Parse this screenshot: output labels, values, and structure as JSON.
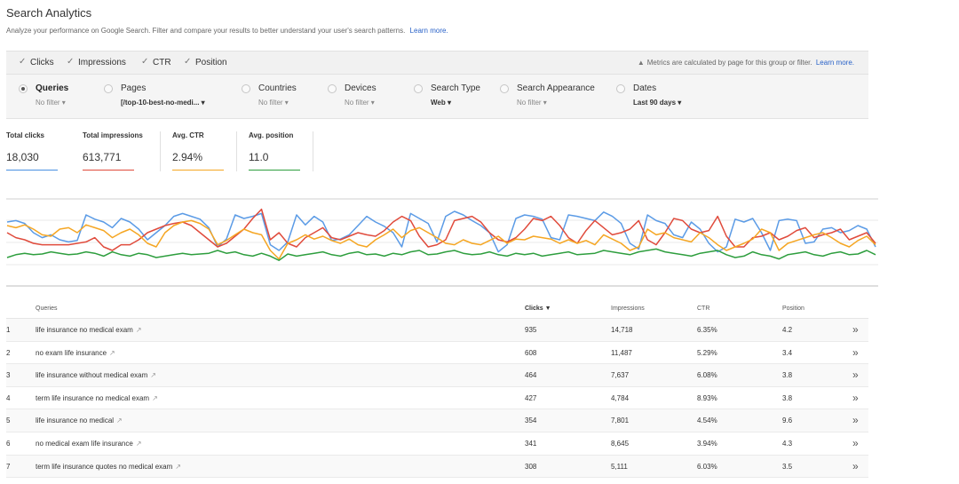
{
  "header": {
    "title": "Search Analytics",
    "subtitle": "Analyze your performance on Google Search. Filter and compare your results to better understand your user's search patterns.",
    "learn_more": "Learn more."
  },
  "metrics": {
    "clicks": "Clicks",
    "impressions": "Impressions",
    "ctr": "CTR",
    "position": "Position",
    "note": "Metrics are calculated by page for this group or filter.",
    "note_link": "Learn more."
  },
  "filters": [
    {
      "label": "Queries",
      "sub": "No filter",
      "selected": true
    },
    {
      "label": "Pages",
      "sub": "[/top-10-best-no-medi...",
      "selected": false
    },
    {
      "label": "Countries",
      "sub": "No filter",
      "selected": false
    },
    {
      "label": "Devices",
      "sub": "No filter",
      "selected": false
    },
    {
      "label": "Search Type",
      "sub": "Web",
      "selected": false
    },
    {
      "label": "Search Appearance",
      "sub": "No filter",
      "selected": false
    },
    {
      "label": "Dates",
      "sub": "Last 90 days",
      "selected": false
    }
  ],
  "totals": [
    {
      "label": "Total clicks",
      "value": "18,030",
      "color": "#4a90e2"
    },
    {
      "label": "Total impressions",
      "value": "613,771",
      "color": "#e04b3c"
    },
    {
      "label": "Avg. CTR",
      "value": "2.94%",
      "color": "#f5a623"
    },
    {
      "label": "Avg. position",
      "value": "11.0",
      "color": "#2e9e3e"
    }
  ],
  "chart_data": {
    "type": "line",
    "title": "",
    "series": [
      {
        "color": "#5b9be6",
        "values": [
          70,
          72,
          68,
          55,
          48,
          52,
          45,
          42,
          44,
          80,
          74,
          70,
          62,
          75,
          70,
          60,
          45,
          55,
          65,
          78,
          82,
          78,
          74,
          62,
          35,
          46,
          80,
          75,
          78,
          82,
          38,
          30,
          42,
          80,
          66,
          78,
          70,
          44,
          46,
          52,
          65,
          78,
          70,
          64,
          55,
          35,
          82,
          75,
          68,
          42,
          78,
          85,
          80,
          72,
          65,
          55,
          28,
          38,
          75,
          80,
          78,
          74,
          48,
          45,
          80,
          78,
          75,
          72,
          84,
          78,
          68,
          40,
          32,
          80,
          72,
          68,
          52,
          48,
          70,
          60,
          40,
          28,
          35,
          74,
          70,
          75,
          55,
          30,
          72,
          74,
          72,
          40,
          42,
          60,
          62,
          55,
          58,
          65,
          60,
          35
        ]
      },
      {
        "color": "#e04b3c",
        "values": [
          55,
          48,
          45,
          40,
          38,
          38,
          38,
          38,
          40,
          42,
          48,
          35,
          30,
          38,
          38,
          45,
          55,
          60,
          65,
          68,
          70,
          65,
          55,
          45,
          35,
          40,
          50,
          60,
          75,
          88,
          45,
          55,
          40,
          35,
          48,
          55,
          62,
          48,
          45,
          50,
          55,
          52,
          50,
          58,
          70,
          78,
          72,
          50,
          35,
          38,
          45,
          72,
          75,
          78,
          70,
          55,
          45,
          42,
          48,
          60,
          75,
          72,
          78,
          65,
          48,
          40,
          58,
          72,
          62,
          52,
          55,
          60,
          72,
          45,
          38,
          55,
          75,
          72,
          60,
          55,
          58,
          78,
          50,
          35,
          35,
          48,
          50,
          55,
          45,
          50,
          58,
          62,
          48,
          52,
          55,
          60,
          45,
          50,
          55,
          40
        ]
      },
      {
        "color": "#f5a623",
        "values": [
          65,
          62,
          66,
          60,
          52,
          50,
          60,
          62,
          55,
          66,
          62,
          58,
          48,
          55,
          60,
          52,
          40,
          35,
          55,
          65,
          70,
          72,
          68,
          60,
          38,
          44,
          52,
          60,
          55,
          52,
          30,
          18,
          40,
          45,
          52,
          46,
          50,
          44,
          40,
          46,
          38,
          35,
          45,
          52,
          60,
          48,
          58,
          62,
          55,
          48,
          40,
          38,
          45,
          40,
          38,
          44,
          50,
          40,
          46,
          45,
          50,
          48,
          46,
          40,
          45,
          40,
          44,
          38,
          52,
          46,
          40,
          30,
          35,
          60,
          52,
          55,
          48,
          45,
          42,
          55,
          48,
          38,
          30,
          35,
          40,
          46,
          60,
          55,
          30,
          40,
          44,
          48,
          52,
          55,
          48,
          40,
          35,
          44,
          50,
          38
        ]
      },
      {
        "color": "#2e9e3e",
        "values": [
          20,
          24,
          26,
          24,
          25,
          28,
          26,
          24,
          25,
          28,
          26,
          22,
          28,
          24,
          22,
          26,
          24,
          20,
          22,
          24,
          26,
          24,
          25,
          26,
          30,
          26,
          28,
          24,
          22,
          26,
          22,
          16,
          25,
          22,
          24,
          26,
          28,
          24,
          22,
          26,
          28,
          24,
          25,
          22,
          26,
          24,
          28,
          30,
          24,
          25,
          28,
          30,
          26,
          24,
          25,
          28,
          24,
          22,
          26,
          24,
          26,
          22,
          24,
          26,
          28,
          24,
          25,
          26,
          30,
          28,
          26,
          24,
          28,
          30,
          32,
          28,
          26,
          24,
          22,
          26,
          28,
          30,
          24,
          20,
          22,
          28,
          24,
          22,
          18,
          24,
          26,
          28,
          24,
          22,
          26,
          28,
          24,
          25,
          30,
          24
        ]
      }
    ]
  },
  "table": {
    "headers": {
      "query": "Queries",
      "clicks": "Clicks ▼",
      "impressions": "Impressions",
      "ctr": "CTR",
      "position": "Position"
    },
    "rows": [
      {
        "num": "1",
        "query": "life insurance no medical exam",
        "clicks": "935",
        "impressions": "14,718",
        "ctr": "6.35%",
        "position": "4.2"
      },
      {
        "num": "2",
        "query": "no exam life insurance",
        "clicks": "608",
        "impressions": "11,487",
        "ctr": "5.29%",
        "position": "3.4"
      },
      {
        "num": "3",
        "query": "life insurance without medical exam",
        "clicks": "464",
        "impressions": "7,637",
        "ctr": "6.08%",
        "position": "3.8"
      },
      {
        "num": "4",
        "query": "term life insurance no medical exam",
        "clicks": "427",
        "impressions": "4,784",
        "ctr": "8.93%",
        "position": "3.8"
      },
      {
        "num": "5",
        "query": "life insurance no medical",
        "clicks": "354",
        "impressions": "7,801",
        "ctr": "4.54%",
        "position": "9.6"
      },
      {
        "num": "6",
        "query": "no medical exam life insurance",
        "clicks": "341",
        "impressions": "8,645",
        "ctr": "3.94%",
        "position": "4.3"
      },
      {
        "num": "7",
        "query": "term life insurance quotes no medical exam",
        "clicks": "308",
        "impressions": "5,111",
        "ctr": "6.03%",
        "position": "3.5"
      }
    ]
  }
}
